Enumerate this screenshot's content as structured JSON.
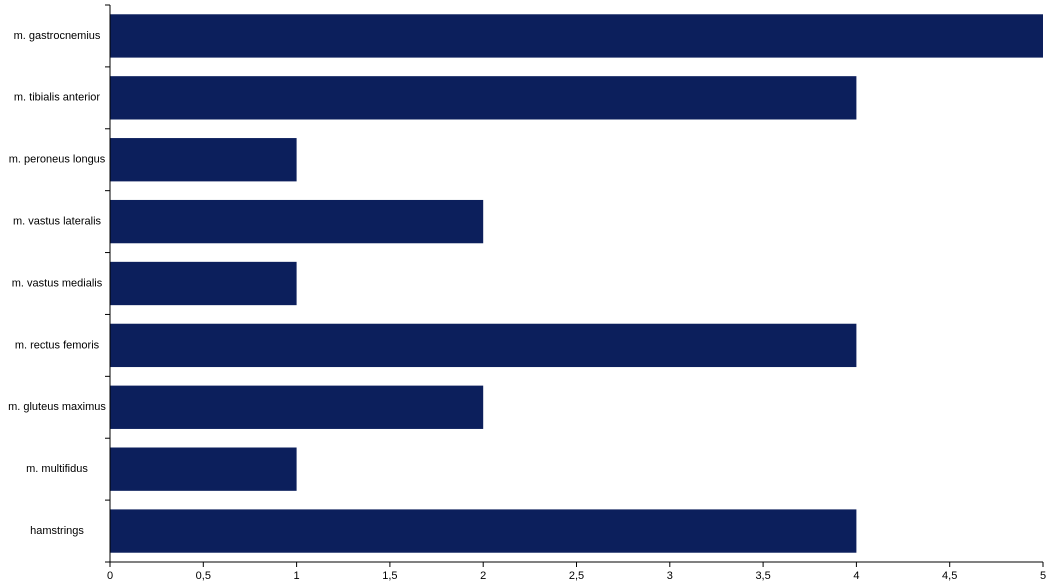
{
  "chart_data": {
    "type": "barh",
    "categories": [
      "m. gastrocnemius",
      "m. tibialis anterior",
      "m. peroneus longus",
      "m. vastus lateralis",
      "m. vastus medialis",
      "m. rectus femoris",
      "m. gluteus maximus",
      "m. multifidus",
      "hamstrings"
    ],
    "values": [
      5,
      4,
      1,
      2,
      1,
      4,
      2,
      1,
      4
    ],
    "color": "#0c1f5c",
    "xlim": [
      0,
      5
    ],
    "xticks": [
      0,
      {
        "value": 0.5,
        "label": "0,5"
      },
      1,
      {
        "value": 1.5,
        "label": "1,5"
      },
      2,
      {
        "value": 2.5,
        "label": "2,5"
      },
      3,
      {
        "value": 3.5,
        "label": "3,5"
      },
      4,
      {
        "value": 4.5,
        "label": "4,5"
      },
      5
    ],
    "grid": false
  }
}
